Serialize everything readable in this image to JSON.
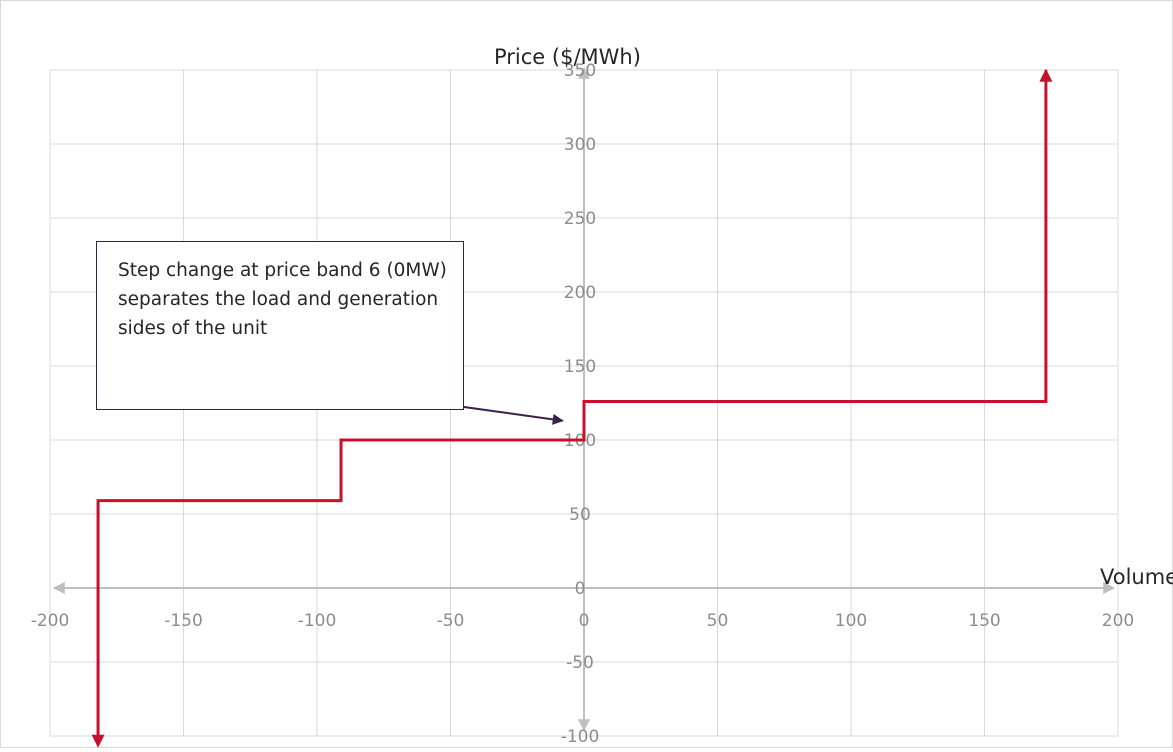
{
  "chart_data": {
    "type": "line",
    "xlabel": "Volume (MW)",
    "ylabel": "Price ($/MWh)",
    "xlim": [
      -200,
      200
    ],
    "ylim": [
      -100,
      350
    ],
    "x_ticks": [
      -200,
      -150,
      -100,
      -50,
      0,
      50,
      100,
      150,
      200
    ],
    "y_ticks": [
      -100,
      -50,
      0,
      50,
      100,
      150,
      200,
      250,
      300,
      350
    ],
    "grid": true,
    "series": [
      {
        "color": "#c8102e",
        "step": true,
        "points": [
          [
            -182,
            -100
          ],
          [
            -182,
            59
          ],
          [
            -91,
            59
          ],
          [
            -91,
            100
          ],
          [
            0,
            100
          ],
          [
            0,
            126
          ],
          [
            173,
            126
          ],
          [
            173,
            350
          ]
        ]
      }
    ],
    "annotations": [
      {
        "text": "Step change at price band 6 (0MW) separates the load and generation sides of the unit",
        "arrow_target": [
          -8,
          113
        ]
      }
    ],
    "colors": {
      "line": "#c8102e",
      "grid": "#d9d9d9",
      "axis": "#bfbfbf",
      "annotation_border": "#3b1f4d"
    }
  }
}
